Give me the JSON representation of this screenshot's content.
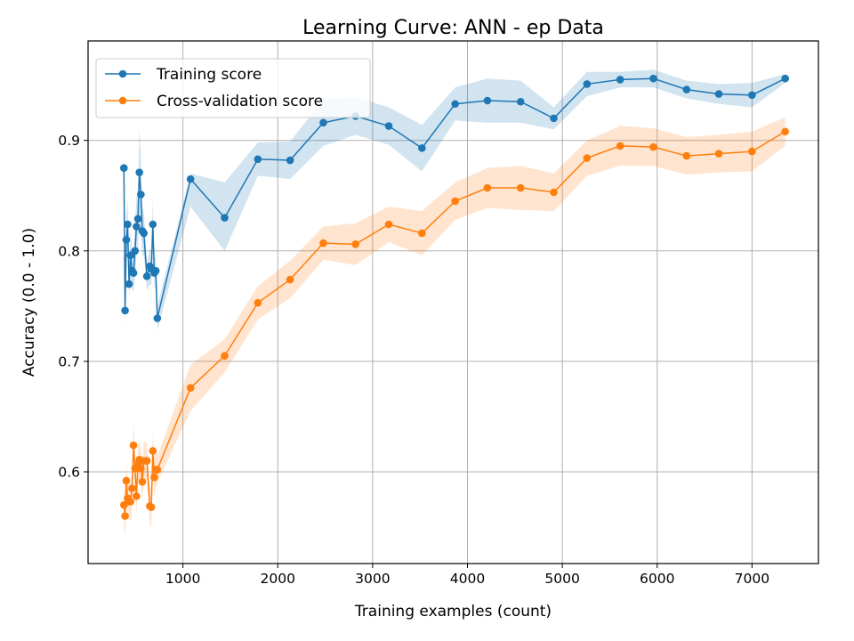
{
  "chart_data": {
    "type": "line",
    "title": "Learning Curve: ANN - ep Data",
    "xlabel": "Training examples (count)",
    "ylabel": "Accuracy (0.0 - 1.0)",
    "xlim": [
      0,
      7700
    ],
    "ylim": [
      0.517,
      0.99
    ],
    "xticks": [
      1000,
      2000,
      3000,
      4000,
      5000,
      6000,
      7000
    ],
    "yticks": [
      0.6,
      0.7,
      0.8,
      0.9
    ],
    "grid": true,
    "legend_position": "top-left",
    "series": [
      {
        "name": "Training score",
        "color": "#1f77b4",
        "x": [
          378,
          390,
          403,
          417,
          432,
          448,
          464,
          479,
          495,
          510,
          526,
          541,
          557,
          572,
          588,
          620,
          651,
          667,
          683,
          698,
          714,
          730,
          1080,
          1440,
          1790,
          2130,
          2480,
          2820,
          3170,
          3520,
          3870,
          4210,
          4560,
          4910,
          5260,
          5610,
          5960,
          6310,
          6650,
          7000,
          7350
        ],
        "y": [
          0.875,
          0.746,
          0.81,
          0.824,
          0.77,
          0.796,
          0.782,
          0.78,
          0.8,
          0.822,
          0.829,
          0.871,
          0.851,
          0.818,
          0.816,
          0.777,
          0.786,
          0.784,
          0.824,
          0.78,
          0.782,
          0.739,
          0.865,
          0.83,
          0.883,
          0.882,
          0.916,
          0.922,
          0.913,
          0.893,
          0.933,
          0.936,
          0.935,
          0.92,
          0.951,
          0.955,
          0.956,
          0.946,
          0.942,
          0.941,
          0.956
        ],
        "lower": [
          0.855,
          0.73,
          0.79,
          0.8,
          0.76,
          0.77,
          0.765,
          0.763,
          0.776,
          0.795,
          0.8,
          0.83,
          0.818,
          0.795,
          0.796,
          0.764,
          0.77,
          0.768,
          0.8,
          0.768,
          0.765,
          0.728,
          0.84,
          0.8,
          0.868,
          0.865,
          0.895,
          0.905,
          0.896,
          0.872,
          0.918,
          0.916,
          0.916,
          0.91,
          0.94,
          0.948,
          0.948,
          0.938,
          0.933,
          0.93,
          0.952
        ],
        "upper": [
          0.895,
          0.762,
          0.83,
          0.848,
          0.78,
          0.822,
          0.8,
          0.797,
          0.824,
          0.849,
          0.858,
          0.912,
          0.884,
          0.841,
          0.836,
          0.79,
          0.802,
          0.8,
          0.848,
          0.792,
          0.799,
          0.75,
          0.87,
          0.862,
          0.898,
          0.899,
          0.937,
          0.939,
          0.93,
          0.914,
          0.948,
          0.956,
          0.954,
          0.93,
          0.962,
          0.962,
          0.964,
          0.954,
          0.951,
          0.952,
          0.96
        ]
      },
      {
        "name": "Cross-validation score",
        "color": "#ff7f0e",
        "x": [
          378,
          390,
          403,
          417,
          432,
          448,
          464,
          479,
          495,
          510,
          526,
          541,
          557,
          572,
          588,
          620,
          651,
          667,
          683,
          698,
          714,
          730,
          1080,
          1440,
          1790,
          2130,
          2480,
          2820,
          3170,
          3520,
          3870,
          4210,
          4560,
          4910,
          5260,
          5610,
          5960,
          6310,
          6650,
          7000,
          7350
        ],
        "y": [
          0.57,
          0.56,
          0.592,
          0.576,
          0.573,
          0.573,
          0.585,
          0.624,
          0.603,
          0.578,
          0.607,
          0.611,
          0.603,
          0.591,
          0.61,
          0.61,
          0.569,
          0.568,
          0.619,
          0.595,
          0.602,
          0.602,
          0.676,
          0.705,
          0.753,
          0.774,
          0.807,
          0.806,
          0.824,
          0.816,
          0.845,
          0.857,
          0.857,
          0.853,
          0.884,
          0.895,
          0.894,
          0.886,
          0.888,
          0.89,
          0.908
        ],
        "lower": [
          0.552,
          0.54,
          0.575,
          0.559,
          0.556,
          0.556,
          0.568,
          0.605,
          0.586,
          0.561,
          0.59,
          0.594,
          0.586,
          0.574,
          0.593,
          0.593,
          0.552,
          0.55,
          0.601,
          0.578,
          0.585,
          0.59,
          0.655,
          0.69,
          0.738,
          0.757,
          0.792,
          0.787,
          0.808,
          0.796,
          0.828,
          0.839,
          0.837,
          0.836,
          0.868,
          0.877,
          0.877,
          0.869,
          0.871,
          0.872,
          0.895
        ],
        "upper": [
          0.588,
          0.578,
          0.609,
          0.593,
          0.59,
          0.59,
          0.602,
          0.643,
          0.62,
          0.595,
          0.624,
          0.628,
          0.62,
          0.608,
          0.627,
          0.627,
          0.586,
          0.586,
          0.637,
          0.612,
          0.619,
          0.614,
          0.697,
          0.72,
          0.768,
          0.791,
          0.822,
          0.825,
          0.84,
          0.836,
          0.862,
          0.875,
          0.877,
          0.87,
          0.9,
          0.913,
          0.911,
          0.903,
          0.905,
          0.908,
          0.921
        ]
      }
    ]
  }
}
